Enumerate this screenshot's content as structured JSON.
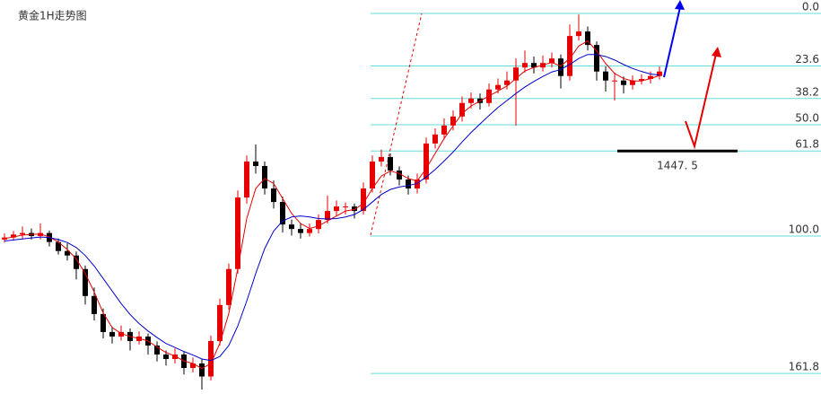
{
  "chart_data": {
    "type": "candlestick",
    "title": "黄金1H走势图",
    "ylim": [
      1398.9,
      1477.7
    ],
    "up_color": "#e60000",
    "down_color": "#000000",
    "candles": [
      [
        1429.8,
        1431.0,
        1429.2,
        1430.2
      ],
      [
        1430.2,
        1431.5,
        1429.6,
        1430.8
      ],
      [
        1430.8,
        1432.4,
        1430.0,
        1431.1
      ],
      [
        1431.1,
        1432.0,
        1429.8,
        1430.5
      ],
      [
        1430.5,
        1433.0,
        1429.8,
        1431.1
      ],
      [
        1431.1,
        1431.6,
        1428.4,
        1429.3
      ],
      [
        1429.3,
        1430.0,
        1426.8,
        1427.5
      ],
      [
        1427.5,
        1429.0,
        1425.6,
        1426.6
      ],
      [
        1426.6,
        1427.4,
        1421.8,
        1423.9
      ],
      [
        1423.9,
        1424.6,
        1416.8,
        1418.5
      ],
      [
        1418.5,
        1420.2,
        1413.6,
        1414.9
      ],
      [
        1414.9,
        1416.0,
        1410.0,
        1411.3
      ],
      [
        1411.3,
        1412.4,
        1409.0,
        1410.4
      ],
      [
        1410.4,
        1412.6,
        1409.6,
        1411.3
      ],
      [
        1411.3,
        1412.0,
        1407.6,
        1409.5
      ],
      [
        1409.5,
        1411.4,
        1408.8,
        1410.4
      ],
      [
        1410.4,
        1411.0,
        1406.8,
        1408.6
      ],
      [
        1408.6,
        1409.4,
        1405.4,
        1406.8
      ],
      [
        1406.8,
        1407.6,
        1404.6,
        1405.9
      ],
      [
        1405.9,
        1408.0,
        1405.0,
        1406.8
      ],
      [
        1406.8,
        1407.4,
        1402.8,
        1404.1
      ],
      [
        1404.1,
        1406.2,
        1403.2,
        1405.0
      ],
      [
        1405.0,
        1405.8,
        1399.8,
        1402.4
      ],
      [
        1402.4,
        1410.6,
        1401.6,
        1409.5
      ],
      [
        1409.5,
        1418.0,
        1408.6,
        1416.7
      ],
      [
        1416.7,
        1425.0,
        1415.8,
        1423.9
      ],
      [
        1423.9,
        1439.6,
        1423.0,
        1438.2
      ],
      [
        1438.2,
        1446.6,
        1437.0,
        1445.4
      ],
      [
        1445.4,
        1448.8,
        1443.0,
        1444.5
      ],
      [
        1444.5,
        1445.4,
        1438.8,
        1440.0
      ],
      [
        1440.0,
        1441.6,
        1436.0,
        1437.3
      ],
      [
        1437.3,
        1438.4,
        1431.2,
        1432.8
      ],
      [
        1432.8,
        1433.8,
        1430.6,
        1431.9
      ],
      [
        1431.9,
        1433.0,
        1430.0,
        1431.1
      ],
      [
        1431.1,
        1433.0,
        1430.4,
        1431.9
      ],
      [
        1431.9,
        1434.8,
        1431.0,
        1433.7
      ],
      [
        1433.7,
        1438.6,
        1433.0,
        1435.5
      ],
      [
        1435.5,
        1437.6,
        1434.4,
        1436.4
      ],
      [
        1436.4,
        1437.2,
        1434.8,
        1436.4
      ],
      [
        1436.4,
        1437.0,
        1434.0,
        1435.5
      ],
      [
        1435.5,
        1441.2,
        1434.8,
        1440.0
      ],
      [
        1440.0,
        1446.6,
        1439.2,
        1445.4
      ],
      [
        1445.4,
        1447.8,
        1444.4,
        1446.3
      ],
      [
        1446.3,
        1447.0,
        1442.6,
        1443.6
      ],
      [
        1443.6,
        1444.4,
        1440.6,
        1441.8
      ],
      [
        1441.8,
        1442.6,
        1438.8,
        1440.0
      ],
      [
        1440.0,
        1443.0,
        1439.0,
        1441.8
      ],
      [
        1441.8,
        1450.2,
        1441.0,
        1449.0
      ],
      [
        1449.0,
        1452.0,
        1448.0,
        1450.8
      ],
      [
        1450.8,
        1454.0,
        1449.8,
        1452.6
      ],
      [
        1452.6,
        1455.6,
        1451.6,
        1454.4
      ],
      [
        1454.4,
        1458.4,
        1453.4,
        1457.1
      ],
      [
        1457.1,
        1459.2,
        1456.0,
        1458.0
      ],
      [
        1458.0,
        1459.0,
        1455.8,
        1457.1
      ],
      [
        1457.1,
        1461.0,
        1456.4,
        1459.8
      ],
      [
        1459.8,
        1462.0,
        1459.0,
        1460.7
      ],
      [
        1460.7,
        1463.4,
        1459.8,
        1461.6
      ],
      [
        1461.6,
        1466.0,
        1452.6,
        1464.2
      ],
      [
        1464.2,
        1467.6,
        1463.2,
        1465.1
      ],
      [
        1465.1,
        1466.4,
        1463.0,
        1464.2
      ],
      [
        1464.2,
        1466.6,
        1463.4,
        1465.1
      ],
      [
        1465.1,
        1467.2,
        1464.2,
        1466.0
      ],
      [
        1466.0,
        1466.8,
        1460.0,
        1462.5
      ],
      [
        1462.5,
        1472.8,
        1461.6,
        1470.5
      ],
      [
        1470.5,
        1474.8,
        1469.6,
        1471.4
      ],
      [
        1471.4,
        1472.4,
        1467.6,
        1468.7
      ],
      [
        1468.7,
        1469.4,
        1461.6,
        1463.4
      ],
      [
        1463.4,
        1464.4,
        1459.4,
        1461.6
      ],
      [
        1461.6,
        1463.2,
        1457.6,
        1461.6
      ],
      [
        1461.6,
        1462.4,
        1459.0,
        1460.7
      ],
      [
        1460.7,
        1462.6,
        1459.8,
        1461.6
      ],
      [
        1461.6,
        1462.8,
        1460.8,
        1461.9
      ],
      [
        1461.9,
        1463.4,
        1461.0,
        1462.5
      ],
      [
        1462.5,
        1464.4,
        1461.8,
        1463.4
      ]
    ],
    "series": [
      {
        "color": "#e60000",
        "values": [
          1430,
          1430.3,
          1430.7,
          1430.8,
          1430.9,
          1430.3,
          1429.3,
          1427.8,
          1425.9,
          1423.0,
          1419.3,
          1415.1,
          1412.2,
          1411.0,
          1410.4,
          1410.0,
          1409.5,
          1408.3,
          1407.2,
          1406.5,
          1405.5,
          1405.0,
          1404.0,
          1405.0,
          1409.0,
          1415.0,
          1424.0,
          1434.0,
          1440.0,
          1442.0,
          1441.0,
          1438.0,
          1435.0,
          1433.0,
          1432.0,
          1432.5,
          1433.5,
          1434.5,
          1435.5,
          1435.8,
          1437.0,
          1440.0,
          1442.5,
          1443.5,
          1443.0,
          1442.0,
          1441.5,
          1444.0,
          1447.0,
          1450.0,
          1452.5,
          1455.0,
          1456.5,
          1457.5,
          1458.5,
          1459.5,
          1460.5,
          1462.0,
          1463.5,
          1464.2,
          1464.7,
          1465.2,
          1464.5,
          1466.0,
          1468.5,
          1469.5,
          1467.5,
          1465.0,
          1463.0,
          1462.0,
          1461.5,
          1461.5,
          1462.0,
          1462.6
        ]
      },
      {
        "color": "#0000cc",
        "values": [
          1429.5,
          1429.7,
          1429.9,
          1430.1,
          1430.3,
          1430.2,
          1429.8,
          1429.2,
          1428.2,
          1426.6,
          1424.5,
          1422.0,
          1419.5,
          1417.0,
          1414.8,
          1413.0,
          1411.5,
          1410.2,
          1409.0,
          1408.2,
          1407.4,
          1406.7,
          1405.9,
          1405.6,
          1406.4,
          1408.6,
          1412.5,
          1417.5,
          1423.0,
          1428.0,
          1431.5,
          1433.5,
          1434.3,
          1434.5,
          1434.3,
          1434.0,
          1433.9,
          1434.0,
          1434.3,
          1434.8,
          1435.8,
          1437.3,
          1438.8,
          1439.8,
          1440.3,
          1440.6,
          1441.0,
          1442.3,
          1443.8,
          1445.5,
          1447.3,
          1449.3,
          1451.2,
          1452.9,
          1454.6,
          1456.2,
          1457.6,
          1459.0,
          1460.3,
          1461.4,
          1462.4,
          1463.3,
          1463.8,
          1464.8,
          1466.0,
          1466.8,
          1466.8,
          1466.4,
          1465.7,
          1464.8,
          1464.0,
          1463.4,
          1462.9,
          1462.7
        ]
      }
    ],
    "fib_color": "#66dddd",
    "fib_levels": [
      {
        "value": 1475.0,
        "label": "0.0"
      },
      {
        "value": 1464.5,
        "label": "23.6"
      },
      {
        "value": 1458.0,
        "label": "38.2"
      },
      {
        "value": 1452.75,
        "label": "50.0"
      },
      {
        "value": 1447.5,
        "label": "61.8"
      },
      {
        "value": 1430.5,
        "label": "100.0"
      },
      {
        "value": 1403.0,
        "label": "161.8"
      }
    ],
    "annotation": {
      "value": 1447.5,
      "label": "1447. 5"
    }
  }
}
